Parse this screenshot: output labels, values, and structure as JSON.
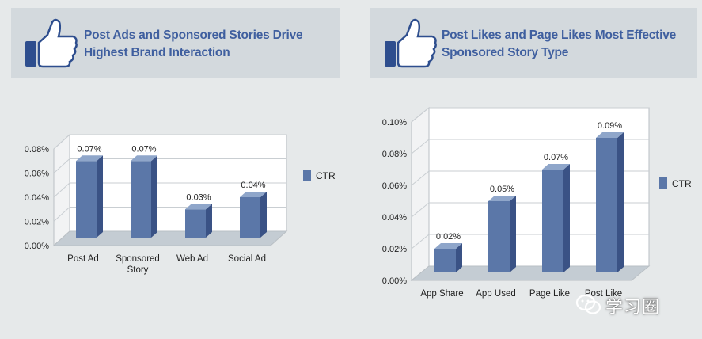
{
  "panels": [
    {
      "title_line1": "Post Ads and Sponsored Stories Drive",
      "title_line2": "Highest Brand Interaction"
    },
    {
      "title_line1": "Post Likes and Page Likes Most Effective",
      "title_line2": "Sponsored Story Type"
    }
  ],
  "watermark": {
    "text": "学习圈",
    "icon": "wechat-icon"
  },
  "colors": {
    "bar_front": "#5b77a8",
    "bar_side": "#3a5285",
    "bar_top": "#8fa6ca",
    "title": "#3f5f9f",
    "header_bg": "#d3d9dd"
  },
  "chart_data": [
    {
      "type": "bar",
      "title": "",
      "categories": [
        "Post Ad",
        "Sponsored\nStory",
        "Web Ad",
        "Social Ad"
      ],
      "series": [
        {
          "name": "CTR",
          "values": [
            0.07,
            0.07,
            0.03,
            0.04
          ]
        }
      ],
      "value_labels": [
        "0.07%",
        "0.07%",
        "0.03%",
        "0.04%"
      ],
      "yticks": [
        "0.00%",
        "0.02%",
        "0.04%",
        "0.06%",
        "0.08%"
      ],
      "ylim": [
        0,
        0.08
      ],
      "xlabel": "",
      "ylabel": "",
      "legend": "right",
      "grid": true
    },
    {
      "type": "bar",
      "title": "",
      "categories": [
        "App Share",
        "App Used",
        "Page Like",
        "Post Like"
      ],
      "series": [
        {
          "name": "CTR",
          "values": [
            0.02,
            0.05,
            0.07,
            0.09
          ]
        }
      ],
      "value_labels": [
        "0.02%",
        "0.05%",
        "0.07%",
        "0.09%"
      ],
      "yticks": [
        "0.00%",
        "0.02%",
        "0.04%",
        "0.06%",
        "0.08%",
        "0.10%"
      ],
      "ylim": [
        0,
        0.1
      ],
      "xlabel": "",
      "ylabel": "",
      "legend": "right",
      "grid": true
    }
  ]
}
